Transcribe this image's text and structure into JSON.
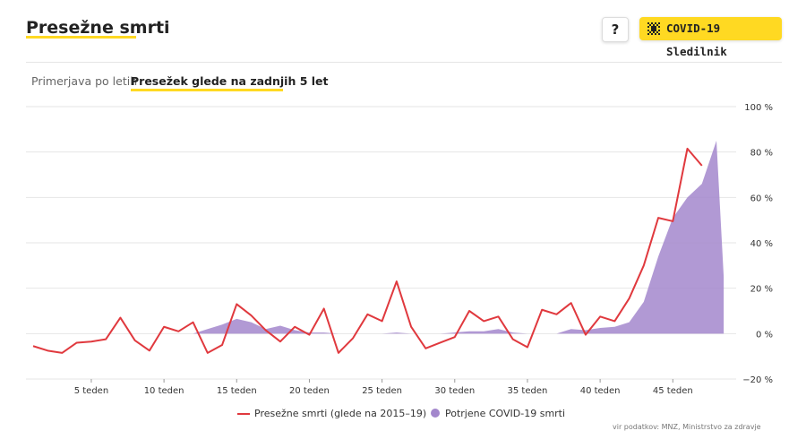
{
  "header": {
    "title": "Presežne smrti",
    "help_label": "?",
    "brand_label": "COVID-19 Sledilnik",
    "brand_icon": "virus-grid-icon"
  },
  "tabs": [
    {
      "label": "Primerjava po letih",
      "active": false
    },
    {
      "label": "Presežek glede na zadnjih 5 let",
      "active": true
    }
  ],
  "colors": {
    "excess_line": "#e0393e",
    "covid_area": "#a387cc",
    "accent": "#ffd922"
  },
  "source": "vir podatkov: MNZ, Ministrstvo za zdravje",
  "chart_data": {
    "type": "line",
    "x_start": 1,
    "x_end": 48,
    "x_tick_values": [
      5,
      10,
      15,
      20,
      25,
      30,
      35,
      40,
      45
    ],
    "x_tick_labels": [
      "5 teden",
      "10 teden",
      "15 teden",
      "20 teden",
      "25 teden",
      "30 teden",
      "35 teden",
      "40 teden",
      "45 teden"
    ],
    "y_ticks": [
      -20,
      0,
      20,
      40,
      60,
      80,
      100
    ],
    "y_tick_labels": [
      "−20 %",
      "0 %",
      "20 %",
      "40 %",
      "60 %",
      "80 %",
      "100 %"
    ],
    "ylim": [
      -20,
      100
    ],
    "grid": true,
    "legend_position": "bottom-center",
    "series": [
      {
        "name": "Presežne smrti (glede na 2015–19)",
        "type": "line",
        "x": [
          1,
          2,
          3,
          4,
          5,
          6,
          7,
          8,
          9,
          10,
          11,
          12,
          13,
          14,
          15,
          16,
          17,
          18,
          19,
          20,
          21,
          22,
          23,
          24,
          25,
          26,
          27,
          28,
          29,
          30,
          31,
          32,
          33,
          34,
          35,
          36,
          37,
          38,
          39,
          40,
          41,
          42,
          43,
          44,
          45,
          46,
          47
        ],
        "values": [
          -5.5,
          -7.5,
          -8.5,
          -4,
          -3.5,
          -2.5,
          7,
          -3,
          -7.5,
          3,
          1,
          5,
          -8.5,
          -5,
          13,
          8,
          1.5,
          -3.5,
          3,
          -0.5,
          11,
          -8.5,
          -2,
          8.5,
          5.5,
          23,
          3,
          -6.5,
          -4,
          -1.5,
          10,
          5.5,
          7.5,
          -2.5,
          -6,
          10.5,
          8.5,
          13.5,
          -0.5,
          7.5,
          5.5,
          15.5,
          30,
          51,
          49.5,
          81.5,
          74
        ]
      },
      {
        "name": "Potrjene COVID-19 smrti",
        "type": "area",
        "x": [
          12,
          13,
          14,
          15,
          16,
          17,
          18,
          19,
          20,
          21,
          22,
          23,
          24,
          25,
          26,
          27,
          28,
          29,
          30,
          31,
          32,
          33,
          34,
          35,
          36,
          37,
          38,
          39,
          40,
          41,
          42,
          43,
          44,
          45,
          46,
          47,
          48,
          48.5
        ],
        "values": [
          0,
          2,
          4,
          6.5,
          5,
          2,
          3.5,
          1.5,
          0.5,
          0.5,
          0,
          0,
          0,
          0,
          0.5,
          0,
          0,
          0,
          0.5,
          1,
          1,
          2,
          0.5,
          0,
          0,
          0,
          2,
          1.5,
          2.5,
          3,
          5,
          14,
          34,
          51,
          60,
          66,
          85,
          25
        ]
      }
    ]
  }
}
